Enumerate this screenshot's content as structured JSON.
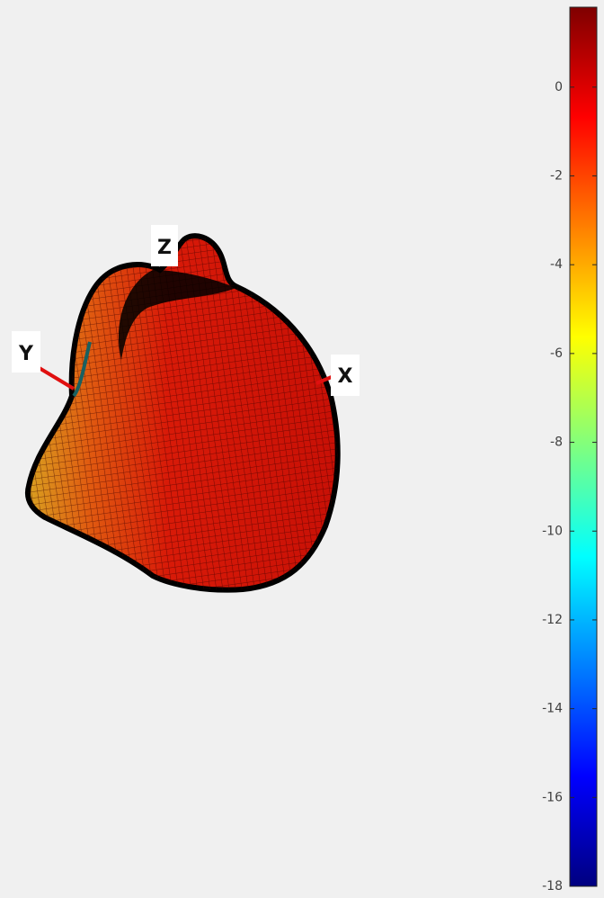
{
  "chart_data": {
    "type": "surface",
    "axis_labels": {
      "x": "X",
      "y": "Y",
      "z": "Z"
    },
    "colorbar": {
      "lim": [
        -18,
        1.8
      ],
      "ticks": [
        0,
        -2,
        -4,
        -6,
        -8,
        -10,
        -12,
        -14,
        -16,
        -18
      ],
      "colormap": "jet"
    }
  }
}
